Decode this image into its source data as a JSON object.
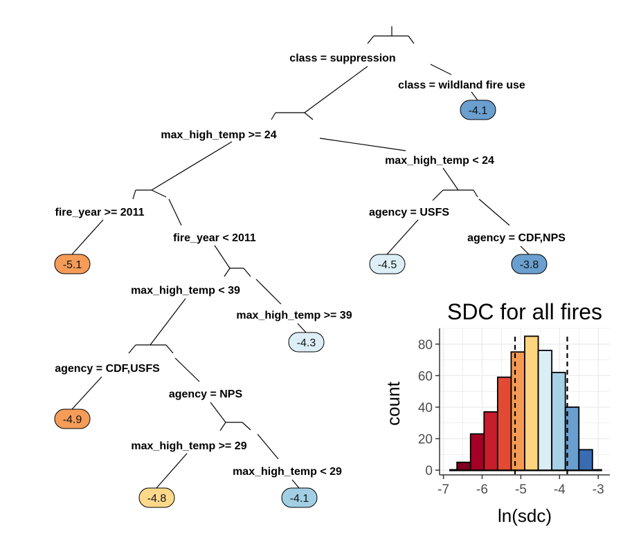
{
  "tree": {
    "labels": {
      "root_left": "class = suppression",
      "root_right": "class = wildland fire use",
      "n1_left": "max_high_temp >= 24",
      "n1_right": "max_high_temp < 24",
      "n2_left": "fire_year >= 2011",
      "n2_right": "fire_year < 2011",
      "n3_left": "agency = USFS",
      "n3_right": "agency = CDF,NPS",
      "n4_left": "max_high_temp < 39",
      "n4_right": "max_high_temp >= 39",
      "n5_left": "agency = CDF,USFS",
      "n5_right": "agency = NPS",
      "n6_left": "max_high_temp >= 29",
      "n6_right": "max_high_temp < 29"
    },
    "leaves": {
      "wildland": "-4.1",
      "fy2011": "-5.1",
      "usfs": "-4.5",
      "cdfnps": "-3.8",
      "temp39": "-4.3",
      "cdfusfs": "-4.9",
      "temp29ge": "-4.8",
      "temp29lt": "-4.1"
    }
  },
  "colors": {
    "leaf_wildland": "#6a9fcf",
    "leaf_fy2011": "#f49c58",
    "leaf_usfs": "#dceef6",
    "leaf_cdfnps": "#6a9fcf",
    "leaf_temp39": "#dceef6",
    "leaf_cdfusfs": "#f49c58",
    "leaf_temp29ge": "#fed98a",
    "leaf_temp29lt": "#a2cfe4"
  },
  "chart_data": {
    "type": "bar",
    "title": "SDC for all fires",
    "xlabel": "ln(sdc)",
    "ylabel": "count",
    "xlim": [
      -7.1,
      -2.7
    ],
    "ylim": [
      -3,
      90
    ],
    "xticks": [
      -7,
      -6,
      -5,
      -4,
      -3
    ],
    "yticks": [
      0,
      20,
      40,
      60,
      80
    ],
    "bin_width": 0.35,
    "bin_lefts": [
      -6.65,
      -6.3,
      -5.95,
      -5.6,
      -5.25,
      -4.9,
      -4.55,
      -4.2,
      -3.85,
      -3.5
    ],
    "counts": [
      5,
      23,
      37,
      59,
      75,
      85,
      76,
      62,
      40,
      13
    ],
    "bin_colors": [
      "#7f0021",
      "#a50026",
      "#c81d2c",
      "#e34a33",
      "#f59a52",
      "#fed47f",
      "#dbeef5",
      "#a6d1e6",
      "#6a9ecf",
      "#3a6cb3"
    ],
    "baseline_x": [
      -6.85,
      -2.9
    ],
    "dashed_lines_x": [
      -5.15,
      -3.8
    ],
    "grid": true
  }
}
